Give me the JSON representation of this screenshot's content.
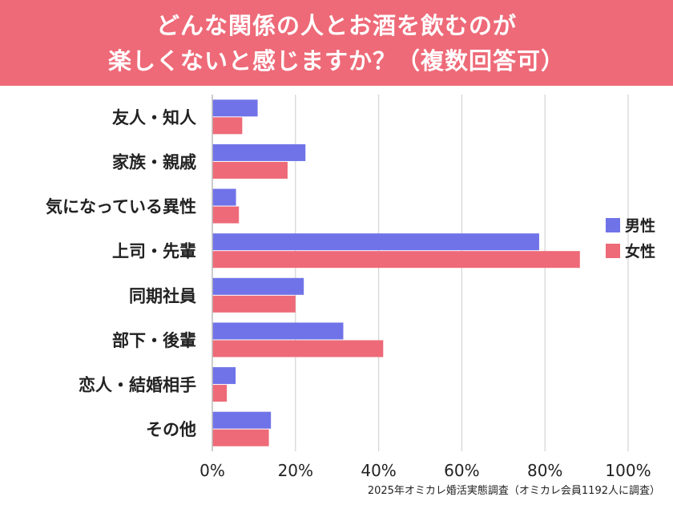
{
  "header": {
    "title_line1": "どんな関係の人とお酒を飲むのが",
    "title_line2": "楽しくないと感じますか？（複数回答可）"
  },
  "chart_data": {
    "type": "bar",
    "orientation": "horizontal",
    "categories": [
      "友人・知人",
      "家族・親戚",
      "気になっている異性",
      "上司・先輩",
      "同期社員",
      "部下・後輩",
      "恋人・結婚相手",
      "その他"
    ],
    "series": [
      {
        "name": "男性",
        "color": "#7073e8",
        "values": [
          10.9,
          22.4,
          5.7,
          78.6,
          22.0,
          31.5,
          5.6,
          14.1
        ]
      },
      {
        "name": "女性",
        "color": "#ee6a78",
        "values": [
          7.2,
          18.1,
          6.4,
          88.4,
          20.0,
          41.1,
          3.5,
          13.6
        ]
      }
    ],
    "x_ticks": [
      "0%",
      "20%",
      "40%",
      "60%",
      "80%",
      "100%"
    ],
    "xlim": [
      0,
      100
    ],
    "grid": true,
    "legend_position": "right"
  },
  "footer": {
    "source": "2025年オミカレ婚活実態調査（オミカレ会員1192人に調査）"
  }
}
